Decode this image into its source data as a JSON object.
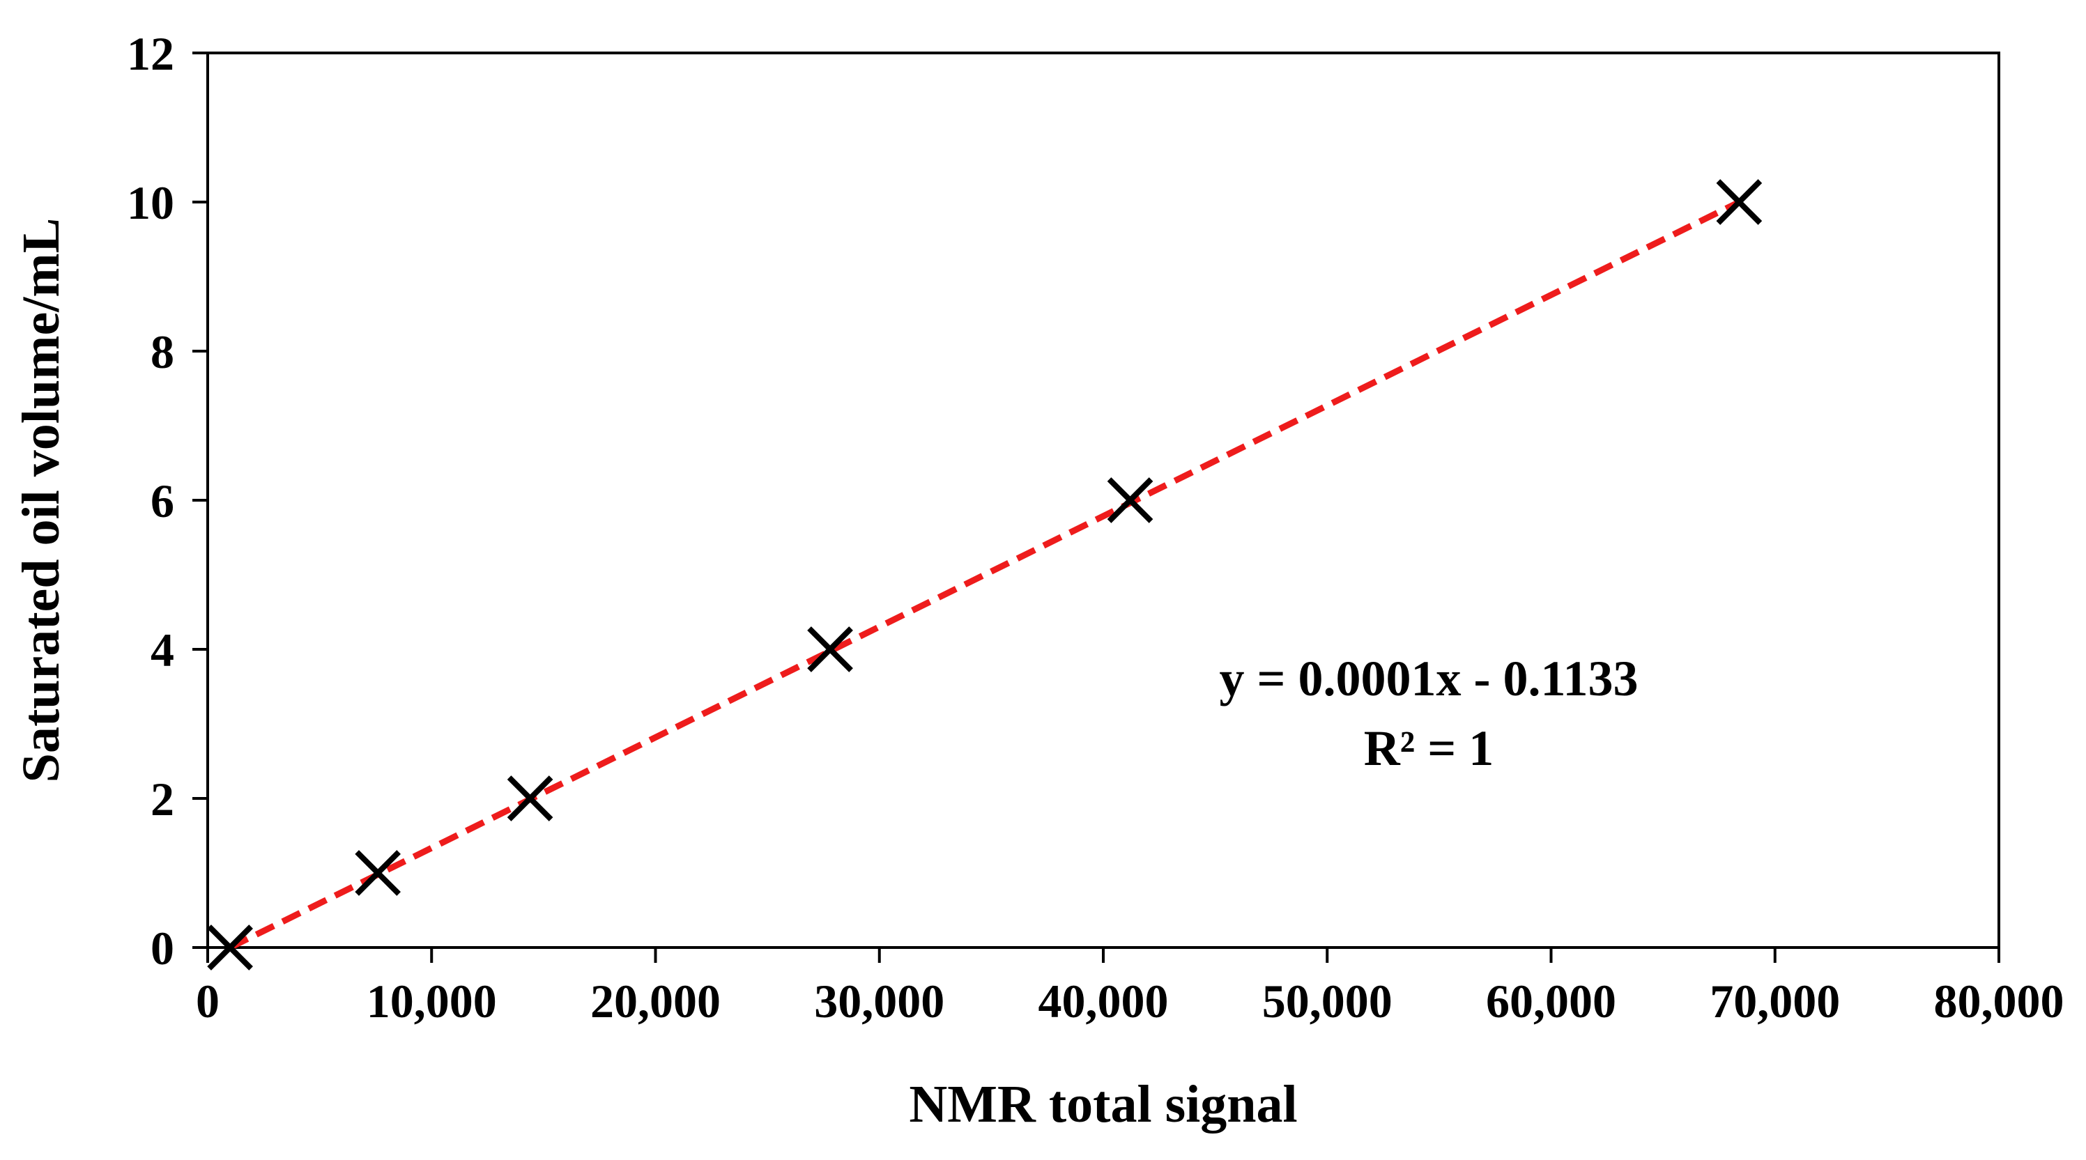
{
  "chart_data": {
    "type": "scatter",
    "xlabel": "NMR total signal",
    "ylabel": "Saturated oil volume/mL",
    "xlim": [
      0,
      80000
    ],
    "ylim": [
      0,
      12
    ],
    "x_ticks": [
      "0",
      "10,000",
      "20,000",
      "30,000",
      "40,000",
      "50,000",
      "60,000",
      "70,000",
      "80,000"
    ],
    "y_ticks": [
      "0",
      "2",
      "4",
      "6",
      "8",
      "10",
      "12"
    ],
    "grid": false,
    "legend": "none",
    "marker": "x",
    "marker_color": "#000000",
    "points": [
      {
        "x": 1000,
        "y": 0
      },
      {
        "x": 7600,
        "y": 1
      },
      {
        "x": 14400,
        "y": 2
      },
      {
        "x": 27800,
        "y": 4
      },
      {
        "x": 41200,
        "y": 6
      },
      {
        "x": 68400,
        "y": 10
      }
    ],
    "trendline": {
      "style": "dashed",
      "color": "#ee1c1c",
      "from": {
        "x": 1000,
        "y": 0
      },
      "to": {
        "x": 68400,
        "y": 10
      },
      "equation": "y = 0.0001x - 0.1133",
      "r_squared": "R² = 1"
    }
  }
}
